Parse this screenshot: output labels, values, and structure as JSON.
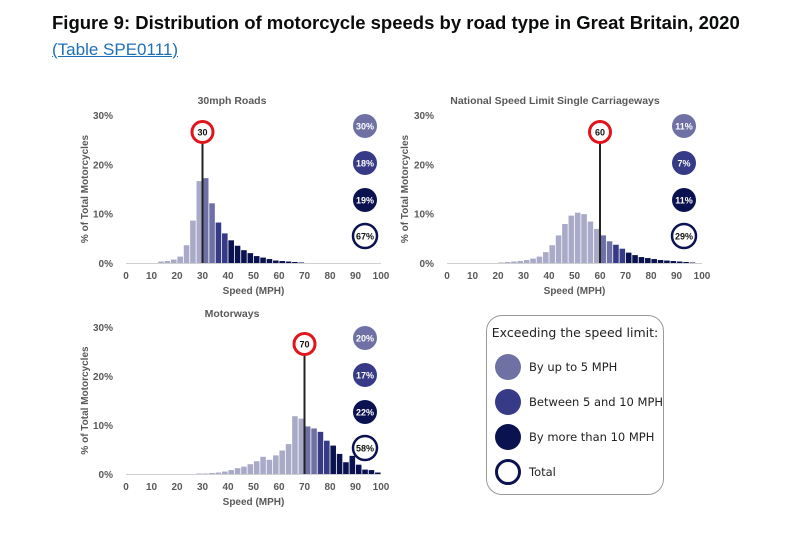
{
  "figure": {
    "title": "Figure 9: Distribution of motorcycle speeds by road type in Great Britain, 2020",
    "link_text": "(Table SPE0111)"
  },
  "colors": {
    "under_limit": "#a9aac8",
    "up_to_5": "#6f71a5",
    "between_5_10": "#363a87",
    "more_than_10": "#0b1250",
    "limit_marker": "#e0161c"
  },
  "legend": {
    "title": "Exceeding the speed limit:",
    "items": [
      {
        "label": "By up to 5 MPH",
        "color": "#6f71a5",
        "type": "fill"
      },
      {
        "label": "Between 5 and 10 MPH",
        "color": "#363a87",
        "type": "fill"
      },
      {
        "label": "By more than 10 MPH",
        "color": "#0b1250",
        "type": "fill"
      },
      {
        "label": "Total",
        "color": "#0b1250",
        "type": "ring"
      }
    ]
  },
  "chart_data": [
    {
      "type": "bar",
      "title": "30mph Roads",
      "xlabel": "Speed (MPH)",
      "ylabel": "% of Total Motorcycles",
      "x_ticks": [
        "0",
        "10",
        "20",
        "30",
        "40",
        "50",
        "60",
        "70",
        "80",
        "90",
        "100"
      ],
      "y_ticks": [
        "0%",
        "10%",
        "20%",
        "30%"
      ],
      "xlim": [
        0,
        100
      ],
      "ylim": [
        0,
        30
      ],
      "speed_limit": 30,
      "speed_limit_label": "30",
      "bin_width": 2.5,
      "bin_starts": [
        12.5,
        15,
        17.5,
        20,
        22.5,
        25,
        27.5,
        30,
        32.5,
        35,
        37.5,
        40,
        42.5,
        45,
        47.5,
        50,
        52.5,
        55,
        57.5,
        60,
        62.5,
        65,
        67.5
      ],
      "values": [
        0.3,
        0.4,
        0.7,
        1.3,
        3.6,
        8.6,
        16.6,
        17.2,
        12.1,
        8.2,
        6.0,
        4.6,
        3.5,
        2.6,
        2.0,
        1.4,
        1.1,
        0.8,
        0.5,
        0.4,
        0.3,
        0.2,
        0.1
      ],
      "exceeding": [
        {
          "label": "30%",
          "category": "up_to_5"
        },
        {
          "label": "18%",
          "category": "between_5_10"
        },
        {
          "label": "19%",
          "category": "more_than_10"
        },
        {
          "label": "67%",
          "category": "total"
        }
      ]
    },
    {
      "type": "bar",
      "title": "National Speed Limit Single Carriageways",
      "xlabel": "Speed (MPH)",
      "ylabel": "% of Total Motorcycles",
      "x_ticks": [
        "0",
        "10",
        "20",
        "30",
        "40",
        "50",
        "60",
        "70",
        "80",
        "90",
        "100"
      ],
      "y_ticks": [
        "0%",
        "10%",
        "20%",
        "30%"
      ],
      "xlim": [
        0,
        100
      ],
      "ylim": [
        0,
        30
      ],
      "speed_limit": 60,
      "speed_limit_label": "60",
      "bin_width": 2.5,
      "bin_starts": [
        20,
        22.5,
        25,
        27.5,
        30,
        32.5,
        35,
        37.5,
        40,
        42.5,
        45,
        47.5,
        50,
        52.5,
        55,
        57.5,
        60,
        62.5,
        65,
        67.5,
        70,
        72.5,
        75,
        77.5,
        80,
        82.5,
        85,
        87.5,
        90,
        92.5,
        95
      ],
      "values": [
        0.1,
        0.2,
        0.3,
        0.4,
        0.6,
        0.9,
        1.3,
        2.2,
        3.6,
        5.6,
        7.9,
        9.6,
        10.2,
        9.9,
        8.4,
        6.9,
        5.6,
        4.4,
        3.7,
        2.9,
        2.1,
        1.6,
        1.2,
        1.0,
        0.8,
        0.6,
        0.5,
        0.4,
        0.3,
        0.2,
        0.1
      ],
      "exceeding": [
        {
          "label": "11%",
          "category": "up_to_5"
        },
        {
          "label": "7%",
          "category": "between_5_10"
        },
        {
          "label": "11%",
          "category": "more_than_10"
        },
        {
          "label": "29%",
          "category": "total"
        }
      ]
    },
    {
      "type": "bar",
      "title": "Motorways",
      "xlabel": "Speed (MPH)",
      "ylabel": "% of Total Motorcycles",
      "x_ticks": [
        "0",
        "10",
        "20",
        "30",
        "40",
        "50",
        "60",
        "70",
        "80",
        "90",
        "100"
      ],
      "y_ticks": [
        "0%",
        "10%",
        "20%",
        "30%"
      ],
      "xlim": [
        0,
        100
      ],
      "ylim": [
        0,
        30
      ],
      "speed_limit": 70,
      "speed_limit_label": "70",
      "bin_width": 2.5,
      "bin_starts": [
        27.5,
        30,
        32.5,
        35,
        37.5,
        40,
        42.5,
        45,
        47.5,
        50,
        52.5,
        55,
        57.5,
        60,
        62.5,
        65,
        67.5,
        70,
        72.5,
        75,
        77.5,
        80,
        82.5,
        85,
        87.5,
        90,
        92.5,
        95,
        97.5
      ],
      "values": [
        0.1,
        0.1,
        0.2,
        0.3,
        0.5,
        0.8,
        1.2,
        1.5,
        2.0,
        2.6,
        3.5,
        2.9,
        3.8,
        4.8,
        6.1,
        11.8,
        11.3,
        9.7,
        9.3,
        8.6,
        6.8,
        5.8,
        4.1,
        2.4,
        3.7,
        1.9,
        0.9,
        0.8,
        0.3
      ],
      "exceeding": [
        {
          "label": "20%",
          "category": "up_to_5"
        },
        {
          "label": "17%",
          "category": "between_5_10"
        },
        {
          "label": "22%",
          "category": "more_than_10"
        },
        {
          "label": "58%",
          "category": "total"
        }
      ]
    }
  ]
}
